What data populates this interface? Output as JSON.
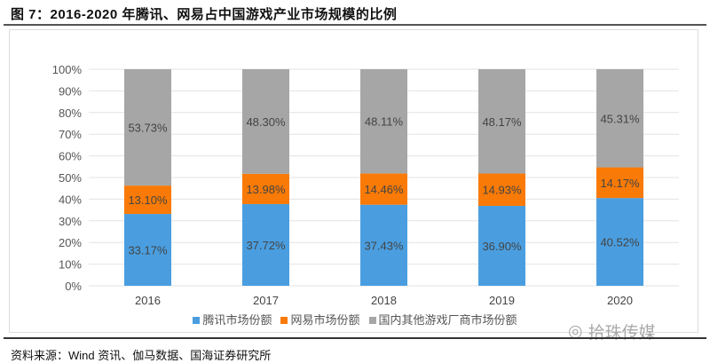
{
  "header": {
    "title": "图 7：2016-2020 年腾讯、网易占中国游戏产业市场规模的比例"
  },
  "footer": {
    "source": "资料来源：Wind 资讯、伽马数据、国海证券研究所",
    "watermark": "拾珠传媒"
  },
  "chart_data": {
    "type": "stacked-bar",
    "title": "",
    "categories": [
      "2016",
      "2017",
      "2018",
      "2019",
      "2020"
    ],
    "series": [
      {
        "name": "腾讯市场份额",
        "color": "#4A9EE0",
        "values": [
          33.17,
          37.72,
          37.43,
          36.9,
          40.52
        ],
        "labels": [
          "33.17%",
          "37.72%",
          "37.43%",
          "36.90%",
          "40.52%"
        ]
      },
      {
        "name": "网易市场份额",
        "color": "#F97A06",
        "values": [
          13.1,
          13.98,
          14.46,
          14.93,
          14.17
        ],
        "labels": [
          "13.10%",
          "13.98%",
          "14.46%",
          "14.93%",
          "14.17%"
        ]
      },
      {
        "name": "国内其他游戏厂商市场份额",
        "color": "#A6A6A6",
        "values": [
          53.73,
          48.3,
          48.11,
          48.17,
          45.31
        ],
        "labels": [
          "53.73%",
          "48.30%",
          "48.11%",
          "48.17%",
          "45.31%"
        ]
      }
    ],
    "yticks": [
      "0%",
      "10%",
      "20%",
      "30%",
      "40%",
      "50%",
      "60%",
      "70%",
      "80%",
      "90%",
      "100%"
    ],
    "ylim": [
      0,
      100
    ],
    "legend": "bottom"
  }
}
